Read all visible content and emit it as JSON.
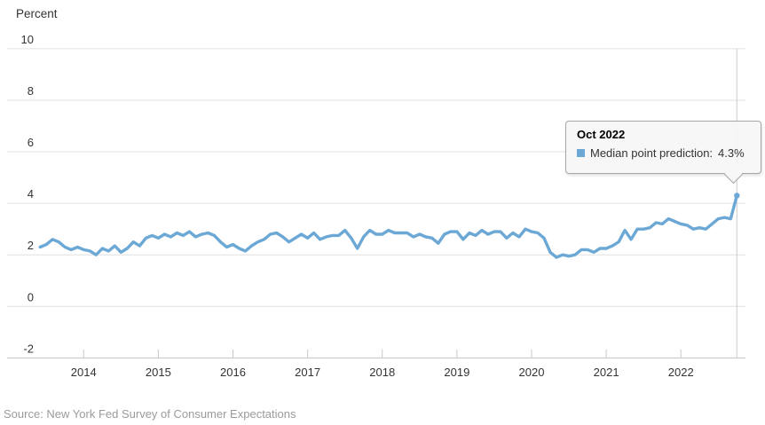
{
  "source": {
    "text": "Source: New York Fed Survey of Consumer Expectations"
  },
  "tooltip": {
    "title": "Oct 2022",
    "series_label": "Median point prediction:",
    "value": "4.3%",
    "swatch_color": "#6CA8D5"
  },
  "colors": {
    "line": "#6CA8D5",
    "gridline": "#e0e0e0",
    "axis": "#c9c9c9",
    "crosshair": "#cccccc",
    "label": "#333333",
    "source_text": "#9b9b9b",
    "tooltip_bg": "#f7f7f7",
    "tooltip_border": "#a6a6a6"
  },
  "chart_data": {
    "type": "line",
    "title": "",
    "xlabel": "",
    "ylabel": "Percent",
    "ylim": [
      -2,
      10
    ],
    "ytick_values": [
      10,
      8,
      6,
      4,
      2,
      0,
      -2
    ],
    "ytick_labels": [
      "10",
      "8",
      "6",
      "4",
      "2",
      "0",
      "-2"
    ],
    "xtick_labels": [
      "2014",
      "2015",
      "2016",
      "2017",
      "2018",
      "2019",
      "2020",
      "2021",
      "2022"
    ],
    "grid": "horizontal-only",
    "legend_position": "none",
    "x_start_month": "2013-06",
    "x_end_month": "2022-10",
    "highlight_point": {
      "x": "2022-10",
      "y": 4.3
    },
    "series": [
      {
        "name": "Median point prediction",
        "color": "#6CA8D5",
        "monthly_values": [
          2.3,
          2.4,
          2.6,
          2.5,
          2.3,
          2.2,
          2.3,
          2.2,
          2.15,
          2.0,
          2.25,
          2.15,
          2.35,
          2.1,
          2.25,
          2.5,
          2.35,
          2.65,
          2.75,
          2.65,
          2.8,
          2.7,
          2.85,
          2.75,
          2.9,
          2.7,
          2.8,
          2.85,
          2.75,
          2.5,
          2.3,
          2.4,
          2.25,
          2.15,
          2.35,
          2.5,
          2.6,
          2.8,
          2.85,
          2.7,
          2.5,
          2.65,
          2.8,
          2.65,
          2.85,
          2.6,
          2.7,
          2.75,
          2.75,
          2.95,
          2.65,
          2.25,
          2.7,
          2.95,
          2.8,
          2.8,
          2.95,
          2.85,
          2.85,
          2.85,
          2.7,
          2.8,
          2.7,
          2.65,
          2.45,
          2.8,
          2.9,
          2.9,
          2.6,
          2.85,
          2.75,
          2.95,
          2.8,
          2.9,
          2.9,
          2.65,
          2.85,
          2.7,
          3.0,
          2.9,
          2.85,
          2.65,
          2.1,
          1.9,
          2.0,
          1.95,
          2.0,
          2.2,
          2.2,
          2.1,
          2.25,
          2.25,
          2.35,
          2.5,
          2.95,
          2.6,
          3.0,
          3.0,
          3.05,
          3.25,
          3.2,
          3.4,
          3.3,
          3.2,
          3.15,
          3.0,
          3.05,
          3.0,
          3.2,
          3.4,
          3.45,
          3.4,
          4.3
        ]
      }
    ]
  }
}
